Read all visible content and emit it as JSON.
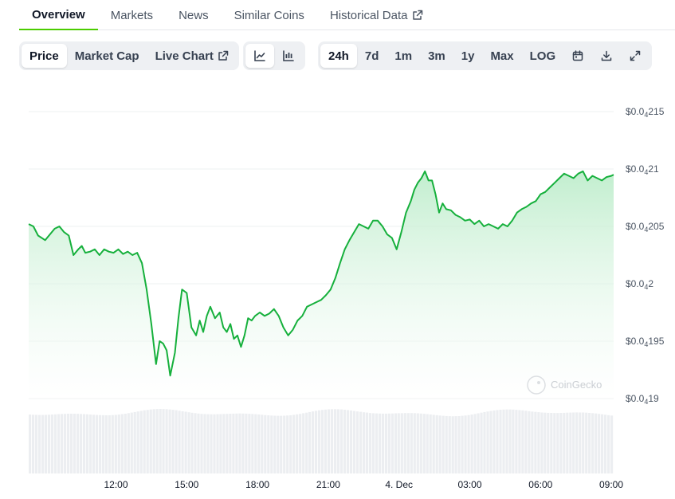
{
  "tabs": [
    {
      "label": "Overview",
      "active": true
    },
    {
      "label": "Markets"
    },
    {
      "label": "News"
    },
    {
      "label": "Similar Coins"
    },
    {
      "label": "Historical Data",
      "external": true
    }
  ],
  "toolbar": {
    "metrics": [
      {
        "label": "Price",
        "active": true
      },
      {
        "label": "Market Cap"
      },
      {
        "label": "Live Chart",
        "external": true
      }
    ],
    "chart_types": [
      {
        "icon": "line-chart-icon",
        "active": true
      },
      {
        "icon": "candlestick-chart-icon"
      }
    ],
    "ranges": [
      {
        "label": "24h",
        "active": true
      },
      {
        "label": "7d"
      },
      {
        "label": "1m"
      },
      {
        "label": "3m"
      },
      {
        "label": "1y"
      },
      {
        "label": "Max"
      },
      {
        "label": "LOG"
      }
    ],
    "actions": [
      "calendar-icon",
      "download-icon",
      "expand-icon"
    ]
  },
  "watermark": "CoinGecko",
  "colors": {
    "line": "#16b03c",
    "fill_top": "#b7ebc6",
    "volume": "#eceef1",
    "grid": "#eef0f2",
    "active_tab": "#4bcc00"
  },
  "chart_data": {
    "type": "area",
    "title": "",
    "xlabel": "",
    "ylabel": "",
    "y_tick_labels": [
      {
        "prefix": "$0.0",
        "sub": "4",
        "suffix": "215",
        "value": 2.15e-05
      },
      {
        "prefix": "$0.0",
        "sub": "4",
        "suffix": "21",
        "value": 2.1e-05
      },
      {
        "prefix": "$0.0",
        "sub": "4",
        "suffix": "205",
        "value": 2.05e-05
      },
      {
        "prefix": "$0.0",
        "sub": "4",
        "suffix": "2",
        "value": 2e-05
      },
      {
        "prefix": "$0.0",
        "sub": "4",
        "suffix": "195",
        "value": 1.95e-05
      },
      {
        "prefix": "$0.0",
        "sub": "4",
        "suffix": "19",
        "value": 1.9e-05
      }
    ],
    "ylim": [
      1.9e-05,
      2.15e-05
    ],
    "x_tick_labels": [
      "12:00",
      "15:00",
      "18:00",
      "21:00",
      "4. Dec",
      "03:00",
      "06:00",
      "09:00"
    ],
    "x_tick_hours": [
      12,
      15,
      18,
      21,
      24,
      27,
      30,
      33
    ],
    "xlim_hours": [
      8.3,
      33.1
    ],
    "series": [
      {
        "unit_scale": "1e-6",
        "x_hours": [
          8.3,
          8.5,
          8.7,
          9.0,
          9.2,
          9.4,
          9.6,
          9.8,
          10.0,
          10.2,
          10.4,
          10.55,
          10.7,
          10.9,
          11.1,
          11.3,
          11.5,
          11.7,
          11.9,
          12.1,
          12.3,
          12.5,
          12.7,
          12.9,
          13.1,
          13.3,
          13.5,
          13.7,
          13.85,
          14.0,
          14.15,
          14.3,
          14.5,
          14.65,
          14.8,
          15.0,
          15.2,
          15.4,
          15.55,
          15.7,
          15.85,
          16.0,
          16.2,
          16.4,
          16.55,
          16.7,
          16.85,
          17.0,
          17.15,
          17.3,
          17.45,
          17.6,
          17.75,
          17.9,
          18.1,
          18.3,
          18.5,
          18.7,
          18.9,
          19.1,
          19.3,
          19.5,
          19.7,
          19.9,
          20.1,
          20.3,
          20.5,
          20.7,
          20.9,
          21.1,
          21.3,
          21.5,
          21.7,
          21.9,
          22.1,
          22.3,
          22.5,
          22.7,
          22.9,
          23.1,
          23.3,
          23.5,
          23.7,
          23.9,
          24.1,
          24.3,
          24.5,
          24.65,
          24.8,
          24.95,
          25.1,
          25.25,
          25.4,
          25.55,
          25.7,
          25.85,
          26.0,
          26.2,
          26.4,
          26.6,
          26.8,
          27.0,
          27.2,
          27.4,
          27.6,
          27.8,
          28.0,
          28.2,
          28.4,
          28.6,
          28.8,
          29.0,
          29.2,
          29.4,
          29.6,
          29.8,
          30.0,
          30.2,
          30.4,
          30.6,
          30.8,
          31.0,
          31.2,
          31.4,
          31.6,
          31.8,
          32.0,
          32.2,
          32.4,
          32.6,
          32.8,
          33.0,
          33.1
        ],
        "values": [
          20.52,
          20.5,
          20.42,
          20.38,
          20.43,
          20.48,
          20.5,
          20.45,
          20.42,
          20.25,
          20.3,
          20.33,
          20.27,
          20.28,
          20.3,
          20.25,
          20.3,
          20.28,
          20.27,
          20.3,
          20.26,
          20.28,
          20.25,
          20.27,
          20.18,
          19.95,
          19.65,
          19.3,
          19.5,
          19.48,
          19.42,
          19.2,
          19.4,
          19.7,
          19.95,
          19.92,
          19.62,
          19.55,
          19.68,
          19.58,
          19.72,
          19.8,
          19.7,
          19.75,
          19.62,
          19.58,
          19.65,
          19.52,
          19.55,
          19.45,
          19.55,
          19.7,
          19.68,
          19.72,
          19.75,
          19.72,
          19.74,
          19.78,
          19.72,
          19.62,
          19.55,
          19.6,
          19.68,
          19.72,
          19.8,
          19.82,
          19.84,
          19.86,
          19.9,
          19.95,
          20.05,
          20.18,
          20.3,
          20.38,
          20.45,
          20.52,
          20.5,
          20.48,
          20.55,
          20.55,
          20.5,
          20.43,
          20.4,
          20.3,
          20.45,
          20.62,
          20.72,
          20.82,
          20.88,
          20.92,
          20.98,
          20.9,
          20.9,
          20.78,
          20.62,
          20.7,
          20.65,
          20.64,
          20.6,
          20.58,
          20.55,
          20.56,
          20.52,
          20.55,
          20.5,
          20.52,
          20.5,
          20.48,
          20.52,
          20.5,
          20.55,
          20.62,
          20.65,
          20.67,
          20.7,
          20.72,
          20.78,
          20.8,
          20.84,
          20.88,
          20.92,
          20.96,
          20.94,
          20.92,
          20.96,
          20.98,
          20.9,
          20.94,
          20.92,
          20.9,
          20.93,
          20.94,
          20.95
        ]
      }
    ]
  }
}
